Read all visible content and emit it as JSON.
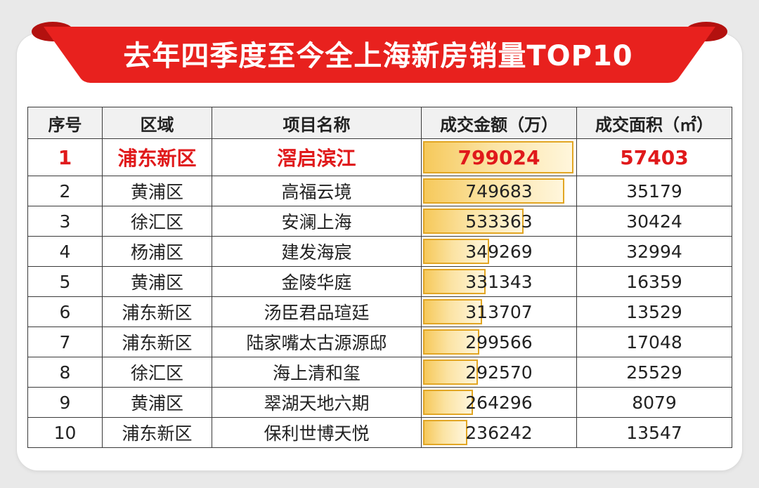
{
  "title": "去年四季度至今全上海新房销量TOP10",
  "colors": {
    "banner": "#e8211e",
    "highlight": "#e0191b",
    "bar_border": "#e2a623",
    "bar_fill": "#f6c95b"
  },
  "headers": [
    "序号",
    "区域",
    "项目名称",
    "成交金额（万）",
    "成交面积（㎡）"
  ],
  "chart_data": {
    "type": "table",
    "columns": [
      "序号",
      "区域",
      "项目名称",
      "成交金额（万）",
      "成交面积（㎡）"
    ],
    "rows": [
      {
        "rank": "1",
        "district": "浦东新区",
        "project": "滘启滨江",
        "amount": 799024,
        "area": 57403
      },
      {
        "rank": "2",
        "district": "黄浦区",
        "project": "高福云境",
        "amount": 749683,
        "area": 35179
      },
      {
        "rank": "3",
        "district": "徐汇区",
        "project": "安澜上海",
        "amount": 533363,
        "area": 30424
      },
      {
        "rank": "4",
        "district": "杨浦区",
        "project": "建发海宸",
        "amount": 349269,
        "area": 32994
      },
      {
        "rank": "5",
        "district": "黄浦区",
        "project": "金陵华庭",
        "amount": 331343,
        "area": 16359
      },
      {
        "rank": "6",
        "district": "浦东新区",
        "project": "汤臣君品瑄廷",
        "amount": 313707,
        "area": 13529
      },
      {
        "rank": "7",
        "district": "浦东新区",
        "project": "陆家嘴太古源源邸",
        "amount": 299566,
        "area": 17048
      },
      {
        "rank": "8",
        "district": "徐汇区",
        "project": "海上清和玺",
        "amount": 292570,
        "area": 25529
      },
      {
        "rank": "9",
        "district": "黄浦区",
        "project": "翠湖天地六期",
        "amount": 264296,
        "area": 8079
      },
      {
        "rank": "10",
        "district": "浦东新区",
        "project": "保利世博天悦",
        "amount": 236242,
        "area": 13547
      }
    ]
  }
}
